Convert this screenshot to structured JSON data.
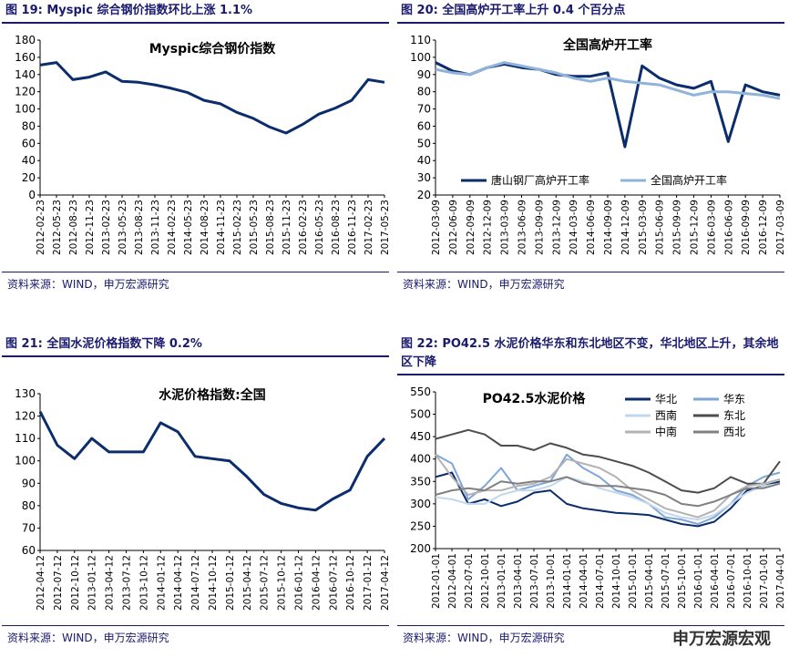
{
  "panels": [
    {
      "heading": "图 19: Myspic 综合钢价指数环比上涨 1.1%",
      "source": "资料来源：WIND，申万宏源研究"
    },
    {
      "heading": "图 20: 全国高炉开工率上升 0.4 个百分点",
      "source": "资料来源：WIND，申万宏源研究"
    },
    {
      "heading": "图 21: 全国水泥价格指数下降 0.2%",
      "source": "资料来源：WIND，申万宏源研究"
    },
    {
      "heading": "图 22: PO42.5 水泥价格华东和东北地区不变，华北地区上升，其余地区下降",
      "source": "资料来源：WIND，申万宏源研究"
    }
  ],
  "watermark": "申万宏源宏观",
  "chart_data": [
    {
      "type": "line",
      "title": "Myspic综合钢价指数",
      "ylim": [
        0,
        180
      ],
      "yticks": [
        0,
        20,
        40,
        60,
        80,
        100,
        120,
        140,
        160,
        180
      ],
      "categories": [
        "2012-02-23",
        "2012-05-23",
        "2012-08-23",
        "2012-11-23",
        "2013-02-23",
        "2013-05-23",
        "2013-08-23",
        "2013-11-23",
        "2014-02-23",
        "2014-05-23",
        "2014-08-23",
        "2014-11-23",
        "2015-02-23",
        "2015-05-23",
        "2015-08-23",
        "2015-11-23",
        "2016-02-23",
        "2016-05-23",
        "2016-08-23",
        "2016-11-23",
        "2017-02-23",
        "2017-05-23"
      ],
      "series": [
        {
          "name": "Myspic综合钢价指数",
          "color": "#0b2d6b",
          "values": [
            151,
            154,
            134,
            137,
            143,
            132,
            131,
            128,
            124,
            119,
            110,
            106,
            96,
            89,
            79,
            72,
            82,
            94,
            101,
            110,
            134,
            131
          ]
        }
      ]
    },
    {
      "type": "line",
      "title": "全国高炉开工率",
      "ylim": [
        20,
        110
      ],
      "yticks": [
        20,
        30,
        40,
        50,
        60,
        70,
        80,
        90,
        100,
        110
      ],
      "categories": [
        "2012-03-09",
        "2012-06-09",
        "2012-09-09",
        "2012-12-09",
        "2013-03-09",
        "2013-06-09",
        "2013-09-09",
        "2013-12-09",
        "2014-03-09",
        "2014-06-09",
        "2014-09-09",
        "2014-12-09",
        "2015-03-09",
        "2015-06-09",
        "2015-09-09",
        "2015-12-09",
        "2016-03-09",
        "2016-06-09",
        "2016-09-09",
        "2016-12-09",
        "2017-03-09"
      ],
      "series": [
        {
          "name": "唐山钢厂高炉开工率",
          "color": "#0b2d6b",
          "values": [
            97,
            92,
            90,
            94,
            96,
            94,
            93,
            90,
            89,
            89,
            91,
            48,
            95,
            88,
            84,
            82,
            86,
            51,
            84,
            80,
            78
          ]
        },
        {
          "name": "全国高炉开工率",
          "color": "#8fb3da",
          "values": [
            93,
            91,
            90,
            94,
            97,
            95,
            93,
            91,
            88,
            86,
            88,
            86,
            85,
            84,
            81,
            78,
            80,
            80,
            79,
            78,
            76
          ]
        }
      ]
    },
    {
      "type": "line",
      "title": "水泥价格指数:全国",
      "ylim": [
        60,
        130
      ],
      "yticks": [
        60,
        70,
        80,
        90,
        100,
        110,
        120,
        130
      ],
      "categories": [
        "2012-04-12",
        "2012-07-12",
        "2012-10-12",
        "2013-01-12",
        "2013-04-12",
        "2013-07-12",
        "2013-10-12",
        "2014-01-12",
        "2014-04-12",
        "2014-07-12",
        "2014-10-12",
        "2015-01-12",
        "2015-04-12",
        "2015-07-12",
        "2015-10-12",
        "2016-01-12",
        "2016-04-12",
        "2016-07-12",
        "2016-10-12",
        "2017-01-12",
        "2017-04-12"
      ],
      "series": [
        {
          "name": "水泥价格指数:全国",
          "color": "#0b2d6b",
          "values": [
            122,
            107,
            101,
            110,
            104,
            104,
            104,
            117,
            113,
            102,
            101,
            100,
            93,
            85,
            81,
            79,
            78,
            83,
            87,
            102,
            110
          ]
        }
      ]
    },
    {
      "type": "line",
      "title": "PO42.5水泥价格",
      "ylim": [
        200,
        550
      ],
      "yticks": [
        200,
        250,
        300,
        350,
        400,
        450,
        500,
        550
      ],
      "categories": [
        "2012-01-01",
        "2012-04-01",
        "2012-07-01",
        "2012-10-01",
        "2013-01-01",
        "2013-04-01",
        "2013-07-01",
        "2013-10-01",
        "2014-01-01",
        "2014-04-01",
        "2014-07-01",
        "2014-10-01",
        "2015-01-01",
        "2015-04-01",
        "2015-07-01",
        "2015-10-01",
        "2016-01-01",
        "2016-04-01",
        "2016-07-01",
        "2016-10-01",
        "2017-01-01",
        "2017-04-01"
      ],
      "series": [
        {
          "name": "华北",
          "color": "#0b2d6b",
          "values": [
            360,
            370,
            300,
            310,
            295,
            305,
            325,
            330,
            300,
            290,
            285,
            280,
            278,
            275,
            265,
            255,
            250,
            260,
            290,
            330,
            340,
            350
          ]
        },
        {
          "name": "华东",
          "color": "#7ea6d8",
          "values": [
            410,
            390,
            310,
            340,
            380,
            330,
            340,
            350,
            410,
            380,
            360,
            330,
            320,
            300,
            270,
            265,
            255,
            270,
            300,
            340,
            360,
            370
          ]
        },
        {
          "name": "西南",
          "color": "#c3d7ee",
          "values": [
            315,
            310,
            300,
            300,
            320,
            330,
            330,
            340,
            360,
            350,
            335,
            325,
            315,
            300,
            280,
            270,
            265,
            275,
            300,
            325,
            340,
            345
          ]
        },
        {
          "name": "东北",
          "color": "#4d4d4d",
          "values": [
            445,
            455,
            465,
            455,
            430,
            430,
            420,
            435,
            425,
            410,
            405,
            395,
            385,
            370,
            350,
            330,
            325,
            335,
            360,
            345,
            345,
            395
          ]
        },
        {
          "name": "中南",
          "color": "#b3b3b3",
          "values": [
            410,
            360,
            320,
            330,
            330,
            340,
            345,
            360,
            400,
            390,
            380,
            360,
            330,
            310,
            290,
            280,
            270,
            285,
            320,
            340,
            345,
            355
          ]
        },
        {
          "name": "西北",
          "color": "#808080",
          "values": [
            320,
            330,
            335,
            330,
            350,
            345,
            350,
            350,
            360,
            345,
            340,
            340,
            335,
            330,
            320,
            300,
            295,
            305,
            320,
            335,
            335,
            345
          ]
        }
      ]
    }
  ]
}
